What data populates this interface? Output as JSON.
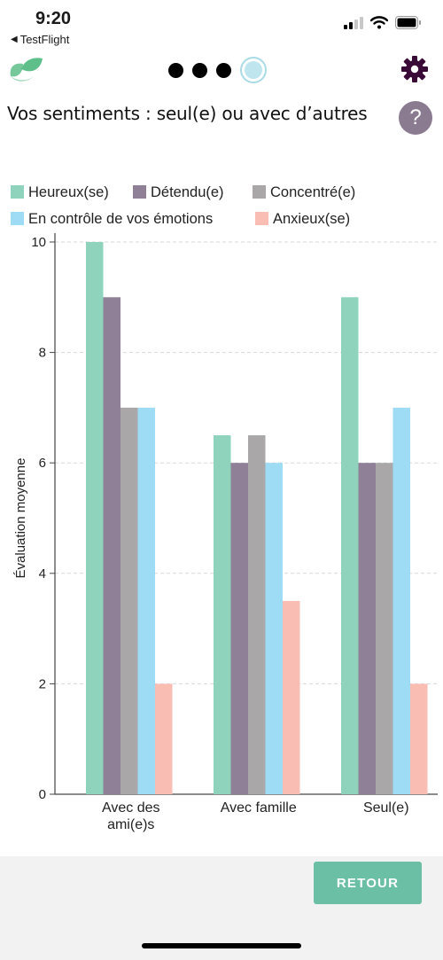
{
  "status_bar": {
    "time": "9:20",
    "back_app": "TestFlight"
  },
  "header": {
    "logo_icon": "leaf-logo-icon",
    "progress": {
      "total": 4,
      "current": 4
    },
    "settings_icon": "gear-icon"
  },
  "page_title": "Vos sentiments : seul(e) ou avec d’autres",
  "help_label": "?",
  "colors": {
    "happy": "#8fd3bd",
    "relaxed": "#8f7f97",
    "focused": "#a9a7a8",
    "control": "#9edcf6",
    "anxious": "#f9bdb3",
    "button": "#6bbfa5"
  },
  "chart_data": {
    "type": "bar",
    "categories": [
      "Avec des ami(e)s",
      "Avec famille",
      "Seul(e)"
    ],
    "series": [
      {
        "name": "Heureux(se)",
        "color": "#8fd3bd",
        "values": [
          10,
          6.5,
          9
        ]
      },
      {
        "name": "Détendu(e)",
        "color": "#8f7f97",
        "values": [
          9,
          6,
          6
        ]
      },
      {
        "name": "Concentré(e)",
        "color": "#a9a7a8",
        "values": [
          7,
          6.5,
          6
        ]
      },
      {
        "name": "En contrôle de vos émotions",
        "color": "#9edcf6",
        "values": [
          7,
          6,
          7
        ]
      },
      {
        "name": "Anxieux(se)",
        "color": "#f9bdb3",
        "values": [
          2,
          3.5,
          2
        ]
      }
    ],
    "ylabel": "Évaluation moyenne",
    "ylim": [
      0,
      10
    ],
    "yticks": [
      0,
      2,
      4,
      6,
      8,
      10
    ],
    "grid": true,
    "legend_position": "top"
  },
  "footer": {
    "back_label": "RETOUR"
  }
}
